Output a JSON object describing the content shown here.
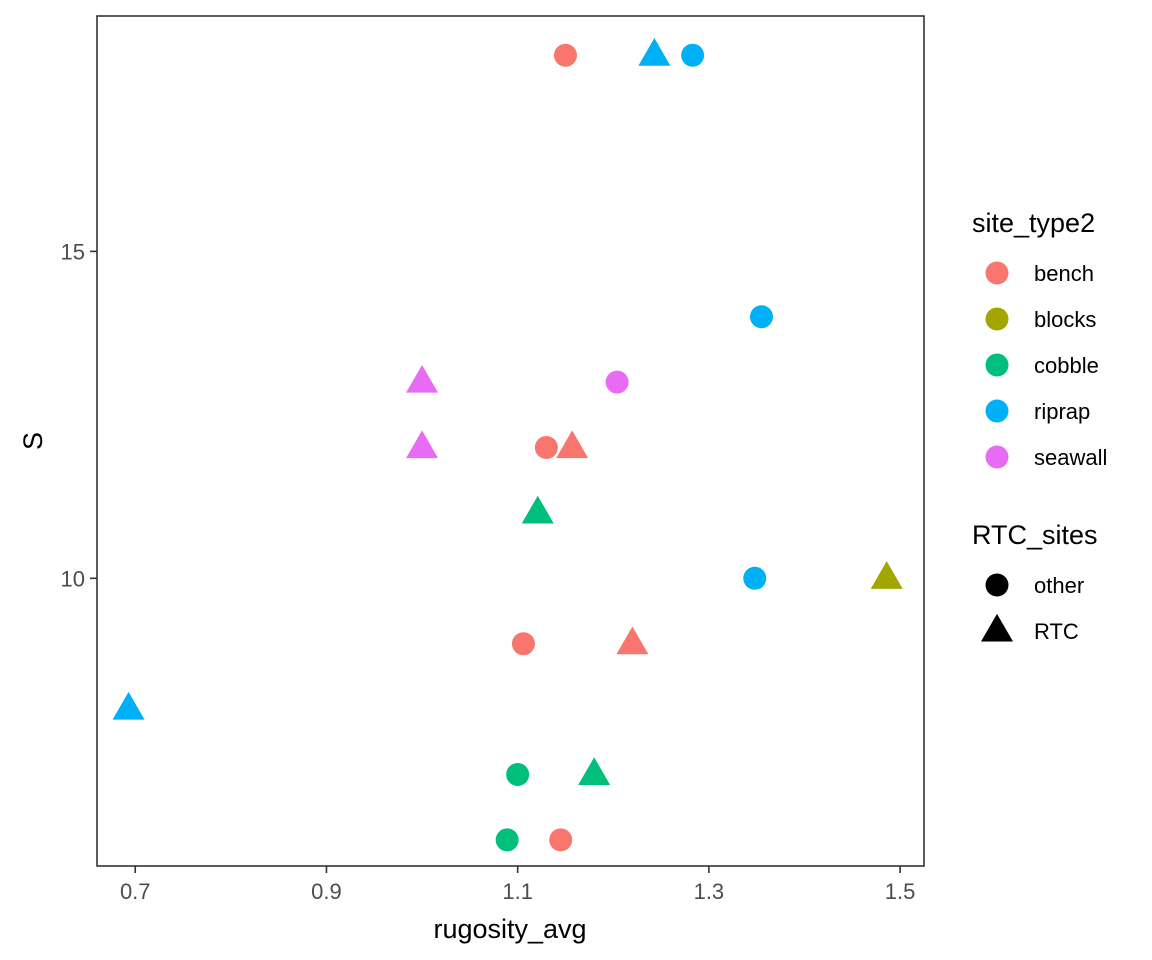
{
  "chart_data": {
    "type": "scatter",
    "xlabel": "rugosity_avg",
    "ylabel": "S",
    "xlim": [
      0.66,
      1.525
    ],
    "ylim": [
      5.6,
      18.6
    ],
    "xticks": [
      0.7,
      0.9,
      1.1,
      1.3,
      1.5
    ],
    "xtick_labels": [
      "0.7",
      "0.9",
      "1.1",
      "1.3",
      "1.5"
    ],
    "yticks": [
      10,
      15
    ],
    "ytick_labels": [
      "10",
      "15"
    ],
    "grid": false,
    "legend_position": "right",
    "legends": [
      {
        "title": "site_type2",
        "kind": "color",
        "entries": [
          {
            "label": "bench",
            "color": "#F8766D"
          },
          {
            "label": "blocks",
            "color": "#A3A500"
          },
          {
            "label": "cobble",
            "color": "#00BF7D"
          },
          {
            "label": "riprap",
            "color": "#00B0F6"
          },
          {
            "label": "seawall",
            "color": "#E76BF3"
          }
        ]
      },
      {
        "title": "RTC_sites",
        "kind": "shape",
        "entries": [
          {
            "label": "other",
            "shape": "circle"
          },
          {
            "label": "RTC",
            "shape": "triangle"
          }
        ]
      }
    ],
    "points": [
      {
        "x": 1.15,
        "y": 18,
        "site_type2": "bench",
        "RTC_sites": "other"
      },
      {
        "x": 1.243,
        "y": 18,
        "site_type2": "riprap",
        "RTC_sites": "RTC"
      },
      {
        "x": 1.283,
        "y": 18,
        "site_type2": "riprap",
        "RTC_sites": "other"
      },
      {
        "x": 1.355,
        "y": 14,
        "site_type2": "riprap",
        "RTC_sites": "other"
      },
      {
        "x": 1.0,
        "y": 13,
        "site_type2": "seawall",
        "RTC_sites": "RTC"
      },
      {
        "x": 1.204,
        "y": 13,
        "site_type2": "seawall",
        "RTC_sites": "other"
      },
      {
        "x": 1.0,
        "y": 12,
        "site_type2": "seawall",
        "RTC_sites": "RTC"
      },
      {
        "x": 1.13,
        "y": 12,
        "site_type2": "bench",
        "RTC_sites": "other"
      },
      {
        "x": 1.157,
        "y": 12,
        "site_type2": "bench",
        "RTC_sites": "RTC"
      },
      {
        "x": 1.121,
        "y": 11,
        "site_type2": "cobble",
        "RTC_sites": "RTC"
      },
      {
        "x": 1.348,
        "y": 10,
        "site_type2": "riprap",
        "RTC_sites": "other"
      },
      {
        "x": 1.486,
        "y": 10,
        "site_type2": "blocks",
        "RTC_sites": "RTC"
      },
      {
        "x": 1.106,
        "y": 9,
        "site_type2": "bench",
        "RTC_sites": "other"
      },
      {
        "x": 1.22,
        "y": 9,
        "site_type2": "bench",
        "RTC_sites": "RTC"
      },
      {
        "x": 0.693,
        "y": 8,
        "site_type2": "riprap",
        "RTC_sites": "RTC"
      },
      {
        "x": 1.1,
        "y": 7,
        "site_type2": "cobble",
        "RTC_sites": "other"
      },
      {
        "x": 1.18,
        "y": 7,
        "site_type2": "cobble",
        "RTC_sites": "RTC"
      },
      {
        "x": 1.089,
        "y": 6,
        "site_type2": "cobble",
        "RTC_sites": "other"
      },
      {
        "x": 1.145,
        "y": 6,
        "site_type2": "bench",
        "RTC_sites": "other"
      }
    ]
  }
}
